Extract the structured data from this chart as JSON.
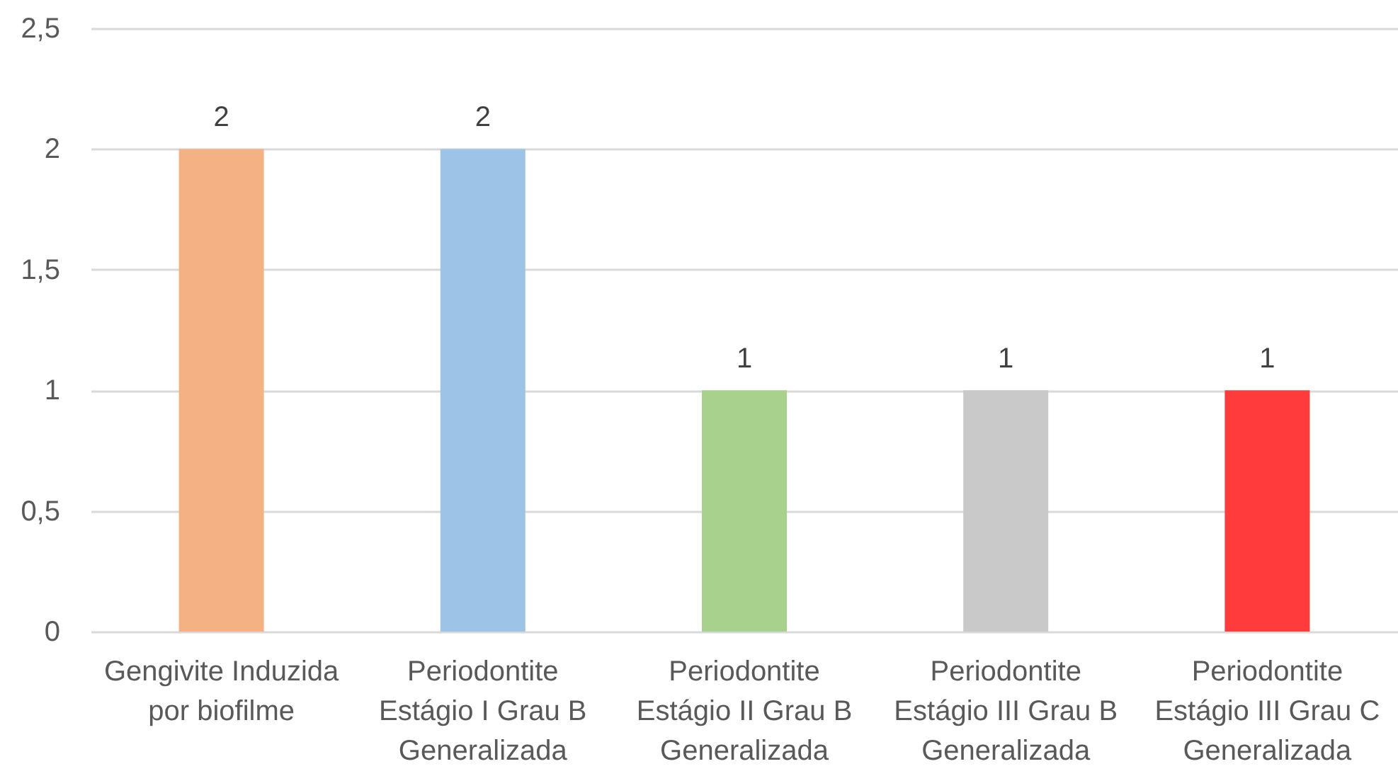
{
  "chart_data": {
    "type": "bar",
    "categories": [
      "Gengivite Induzida por biofilme",
      "Periodontite Estágio I Grau B Generalizada",
      "Periodontite Estágio II Grau B Generalizada",
      "Periodontite Estágio III Grau B Generalizada",
      "Periodontite Estágio III Grau C Generalizada"
    ],
    "values": [
      2,
      2,
      1,
      1,
      1
    ],
    "colors": [
      "#f4b183",
      "#9dc3e6",
      "#a9d18e",
      "#c9c9c9",
      "#ff3b3b"
    ],
    "ylim": [
      0,
      2.5
    ],
    "yticks": [
      0,
      {
        "value": 0.5,
        "label": "0,5"
      },
      1,
      {
        "value": 1.5,
        "label": "1,5"
      },
      2,
      {
        "value": 2.5,
        "label": "2,5"
      }
    ],
    "grid": "y",
    "data_labels": true
  }
}
